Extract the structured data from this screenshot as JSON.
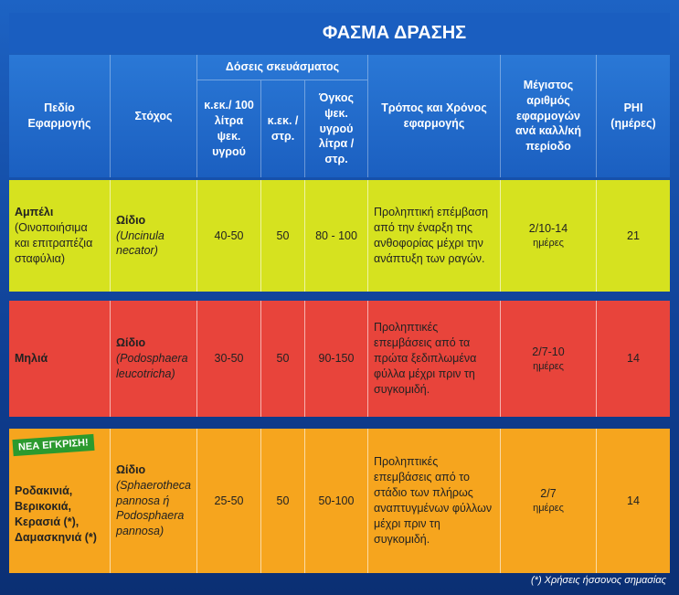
{
  "title": "ΦΑΣΜΑ ΔΡΑΣΗΣ",
  "table": {
    "header": {
      "field": "Πεδίο Εφαρμογής",
      "target": "Στόχος",
      "doses": "Δόσεις σκευάσματος",
      "dose_per_100l": "κ.εκ./ 100 λίτρα ψεκ. υγρού",
      "dose_per_stremma": "κ.εκ. /στρ.",
      "spray_volume": "Όγκος ψεκ. υγρού λίτρα / στρ.",
      "method": "Τρόπος και Χρόνος εφαρμογής",
      "max_applications": "Μέγιστος αριθμός εφαρμογών ανά καλλ/κή περίοδο",
      "phi": "PHI (ημέρες)"
    },
    "rows": [
      {
        "field": "Αμπέλι",
        "field_note": "(Οινοποιήσιμα και επιτραπέζια σταφύλια)",
        "target": "Ωίδιο",
        "target_latin": "(Uncinula necator)",
        "dose_per_100l": "40-50",
        "dose_per_stremma": "50",
        "spray_volume": "80 - 100",
        "method": "Προληπτική επέμβαση από την έναρξη της ανθοφορίας μέχρι την ανάπτυξη των ραγών.",
        "max_applications": "2/10-14",
        "interval_unit": "ημέρες",
        "phi": "21"
      },
      {
        "field": "Μηλιά",
        "target": "Ωίδιο",
        "target_latin": "(Podosphaera leucotricha)",
        "dose_per_100l": "30-50",
        "dose_per_stremma": "50",
        "spray_volume": "90-150",
        "method": "Προληπτικές επεμβάσεις από τα πρώτα ξεδιπλωμένα φύλλα μέχρι πριν τη συγκομιδή.",
        "max_applications": "2/7-10",
        "interval_unit": "ημέρες",
        "phi": "14"
      },
      {
        "badge": "ΝΕΑ ΕΓΚΡΙΣΗ!",
        "field": "Ροδακινιά, Βερικοκιά, Κερασιά (*), Δαμασκηνιά (*)",
        "target": "Ωίδιο",
        "target_latin": "(Sphaerotheca pannosa ή Podosphaera pannosa)",
        "dose_per_100l": "25-50",
        "dose_per_stremma": "50",
        "spray_volume": "50-100",
        "method": "Προληπτικές επεμβάσεις από το στάδιο των πλήρως αναπτυγμένων φύλλων μέχρι πριν τη συγκομιδή.",
        "max_applications": "2/7",
        "interval_unit": "ημέρες",
        "phi": "14"
      }
    ]
  },
  "footnote": "(*) Χρήσεις ήσσονος σημασίας"
}
